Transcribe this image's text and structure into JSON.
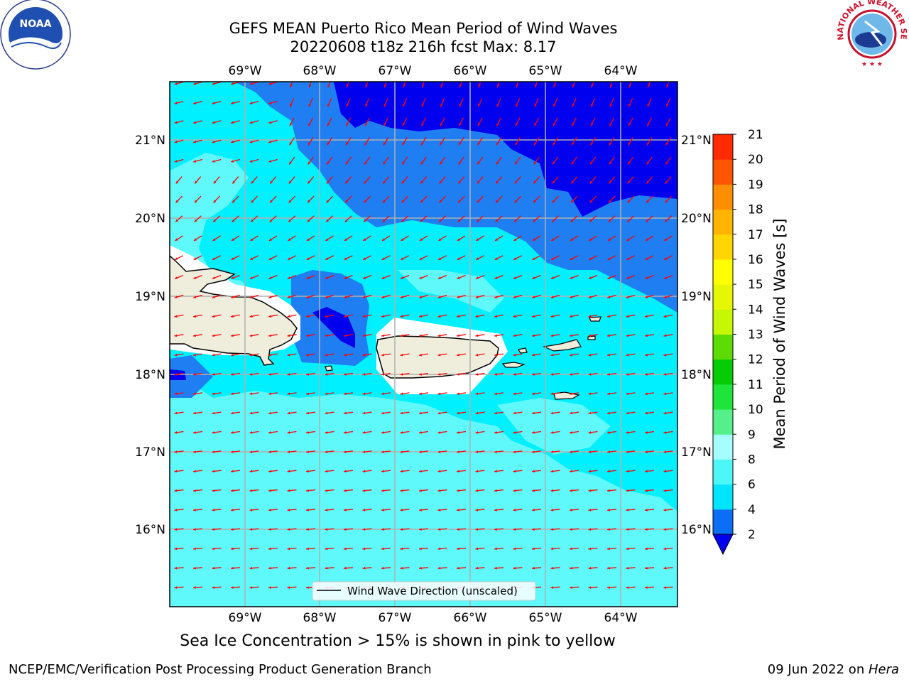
{
  "title": {
    "line1": "GEFS MEAN Puerto Rico Mean Period of Wind Waves",
    "line2": "20220608 t18z 216h fcst   Max: 8.17"
  },
  "axes": {
    "lon_labels": [
      "69°W",
      "68°W",
      "67°W",
      "66°W",
      "65°W",
      "64°W"
    ],
    "lat_labels": [
      "21°N",
      "20°N",
      "19°N",
      "18°N",
      "17°N",
      "16°N"
    ]
  },
  "colorbar": {
    "label": "Mean Period of Wind Waves [s]",
    "ticks": [
      "2",
      "4",
      "6",
      "8",
      "9",
      "10",
      "11",
      "12",
      "13",
      "14",
      "15",
      "16",
      "17",
      "18",
      "19",
      "20",
      "21"
    ],
    "colors": [
      "#0a6ff5",
      "#00e5ff",
      "#4df7f7",
      "#a6fdfd",
      "#55f08a",
      "#1fe53a",
      "#05cc05",
      "#5cdb05",
      "#c6f705",
      "#e6f705",
      "#ffff00",
      "#ffd500",
      "#ffb400",
      "#ff8f00",
      "#ff5500",
      "#ff2a00"
    ],
    "under_color": "#0000ee"
  },
  "legend": {
    "label": "Wind Wave Direction (unscaled)"
  },
  "logos": {
    "left": "NOAA",
    "right": "NATIONAL WEATHER SERVICE"
  },
  "note": "Sea Ice Concentration > 15% is shown in pink to yellow",
  "footer": {
    "left": "NCEP/EMC/Verification Post Processing Product Generation Branch",
    "right_prefix": "09 Jun 2022 on ",
    "right_host": "Hera"
  },
  "colors": {
    "dark_blue": "#0000ee",
    "mid_blue": "#1f7ff2",
    "cyan": "#00f0ff",
    "light_cyan": "#60f7fb",
    "land": "#efeedd",
    "arrow": "#ff0000"
  }
}
